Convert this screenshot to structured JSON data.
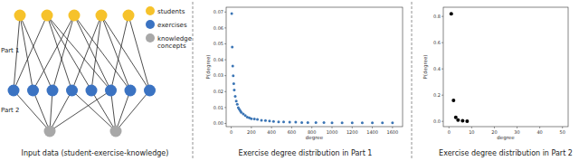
{
  "diagram": {
    "legend": [
      {
        "label": "students",
        "color": "#f6c22b"
      },
      {
        "label": "exercises",
        "color": "#3b73c2"
      },
      {
        "label": "knowledge concepts",
        "color": "#a8a8a8"
      }
    ],
    "parts": [
      "Part 1",
      "Part 2"
    ],
    "students": 5,
    "exercises": 8,
    "concepts": 2,
    "edges_part1": [
      [
        0,
        0
      ],
      [
        0,
        1
      ],
      [
        0,
        2
      ],
      [
        1,
        0
      ],
      [
        1,
        3
      ],
      [
        1,
        4
      ],
      [
        1,
        5
      ],
      [
        2,
        1
      ],
      [
        2,
        2
      ],
      [
        2,
        5
      ],
      [
        2,
        6
      ],
      [
        3,
        3
      ],
      [
        3,
        4
      ],
      [
        3,
        6
      ],
      [
        3,
        7
      ],
      [
        4,
        5
      ],
      [
        4,
        7
      ]
    ],
    "edges_part2": [
      [
        0,
        0
      ],
      [
        1,
        0
      ],
      [
        2,
        0
      ],
      [
        3,
        0
      ],
      [
        3,
        1
      ],
      [
        4,
        1
      ],
      [
        5,
        0
      ],
      [
        5,
        1
      ],
      [
        6,
        1
      ],
      [
        7,
        1
      ]
    ],
    "caption": "Input data (student-exercise-knowledge)"
  },
  "chart_data": [
    {
      "type": "scatter",
      "title": "Exercise degree distribution in Part 1",
      "x_label": "degree",
      "y_label": "P(degree)",
      "color": "#3b75b5",
      "marker": "circle",
      "x": [
        5,
        10,
        15,
        20,
        25,
        30,
        40,
        50,
        60,
        70,
        80,
        90,
        100,
        120,
        140,
        160,
        180,
        200,
        230,
        260,
        300,
        340,
        380,
        420,
        470,
        520,
        580,
        640,
        700,
        760,
        840,
        920,
        1000,
        1100,
        1200,
        1300,
        1400,
        1500,
        1600
      ],
      "values": [
        0.069,
        0.048,
        0.036,
        0.03,
        0.025,
        0.021,
        0.017,
        0.014,
        0.012,
        0.01,
        0.009,
        0.008,
        0.007,
        0.006,
        0.005,
        0.004,
        0.0035,
        0.003,
        0.0028,
        0.0025,
        0.002,
        0.0018,
        0.0015,
        0.0012,
        0.001,
        0.001,
        0.0008,
        0.0008,
        0.0006,
        0.0006,
        0.0005,
        0.0005,
        0.0004,
        0.0004,
        0.0004,
        0.0004,
        0.0004,
        0.0004,
        0.0004
      ],
      "xlim": [
        -50,
        1700
      ],
      "ylim": [
        -0.002,
        0.073
      ],
      "xticks": [
        0,
        200,
        400,
        600,
        800,
        1000,
        1200,
        1400,
        1600
      ],
      "yticks": [
        {
          "value": 0,
          "label": "0.00"
        },
        {
          "value": 0.01,
          "label": "0.01"
        },
        {
          "value": 0.02,
          "label": "0.02"
        },
        {
          "value": 0.03,
          "label": "0.03"
        },
        {
          "value": 0.04,
          "label": "0.04"
        },
        {
          "value": 0.05,
          "label": "0.05"
        },
        {
          "value": 0.06,
          "label": "0.06"
        },
        {
          "value": 0.07,
          "label": "0.07"
        }
      ]
    },
    {
      "type": "scatter",
      "title": "Exercise degree distribution in Part 2",
      "x_label": "degree",
      "y_label": "P(degree)",
      "color": "#000000",
      "marker": "circle",
      "x": [
        1,
        2,
        3,
        4,
        6,
        8
      ],
      "values": [
        0.82,
        0.16,
        0.03,
        0.01,
        0.004,
        0.002
      ],
      "xlim": [
        -2.5,
        52.5
      ],
      "ylim": [
        -0.04,
        0.87
      ],
      "xticks": [
        0,
        10,
        20,
        30,
        40,
        50
      ],
      "yticks": [
        {
          "value": 0,
          "label": "0.0"
        },
        {
          "value": 0.2,
          "label": "0.2"
        },
        {
          "value": 0.4,
          "label": "0.4"
        },
        {
          "value": 0.6,
          "label": "0.6"
        },
        {
          "value": 0.8,
          "label": "0.8"
        }
      ]
    }
  ]
}
